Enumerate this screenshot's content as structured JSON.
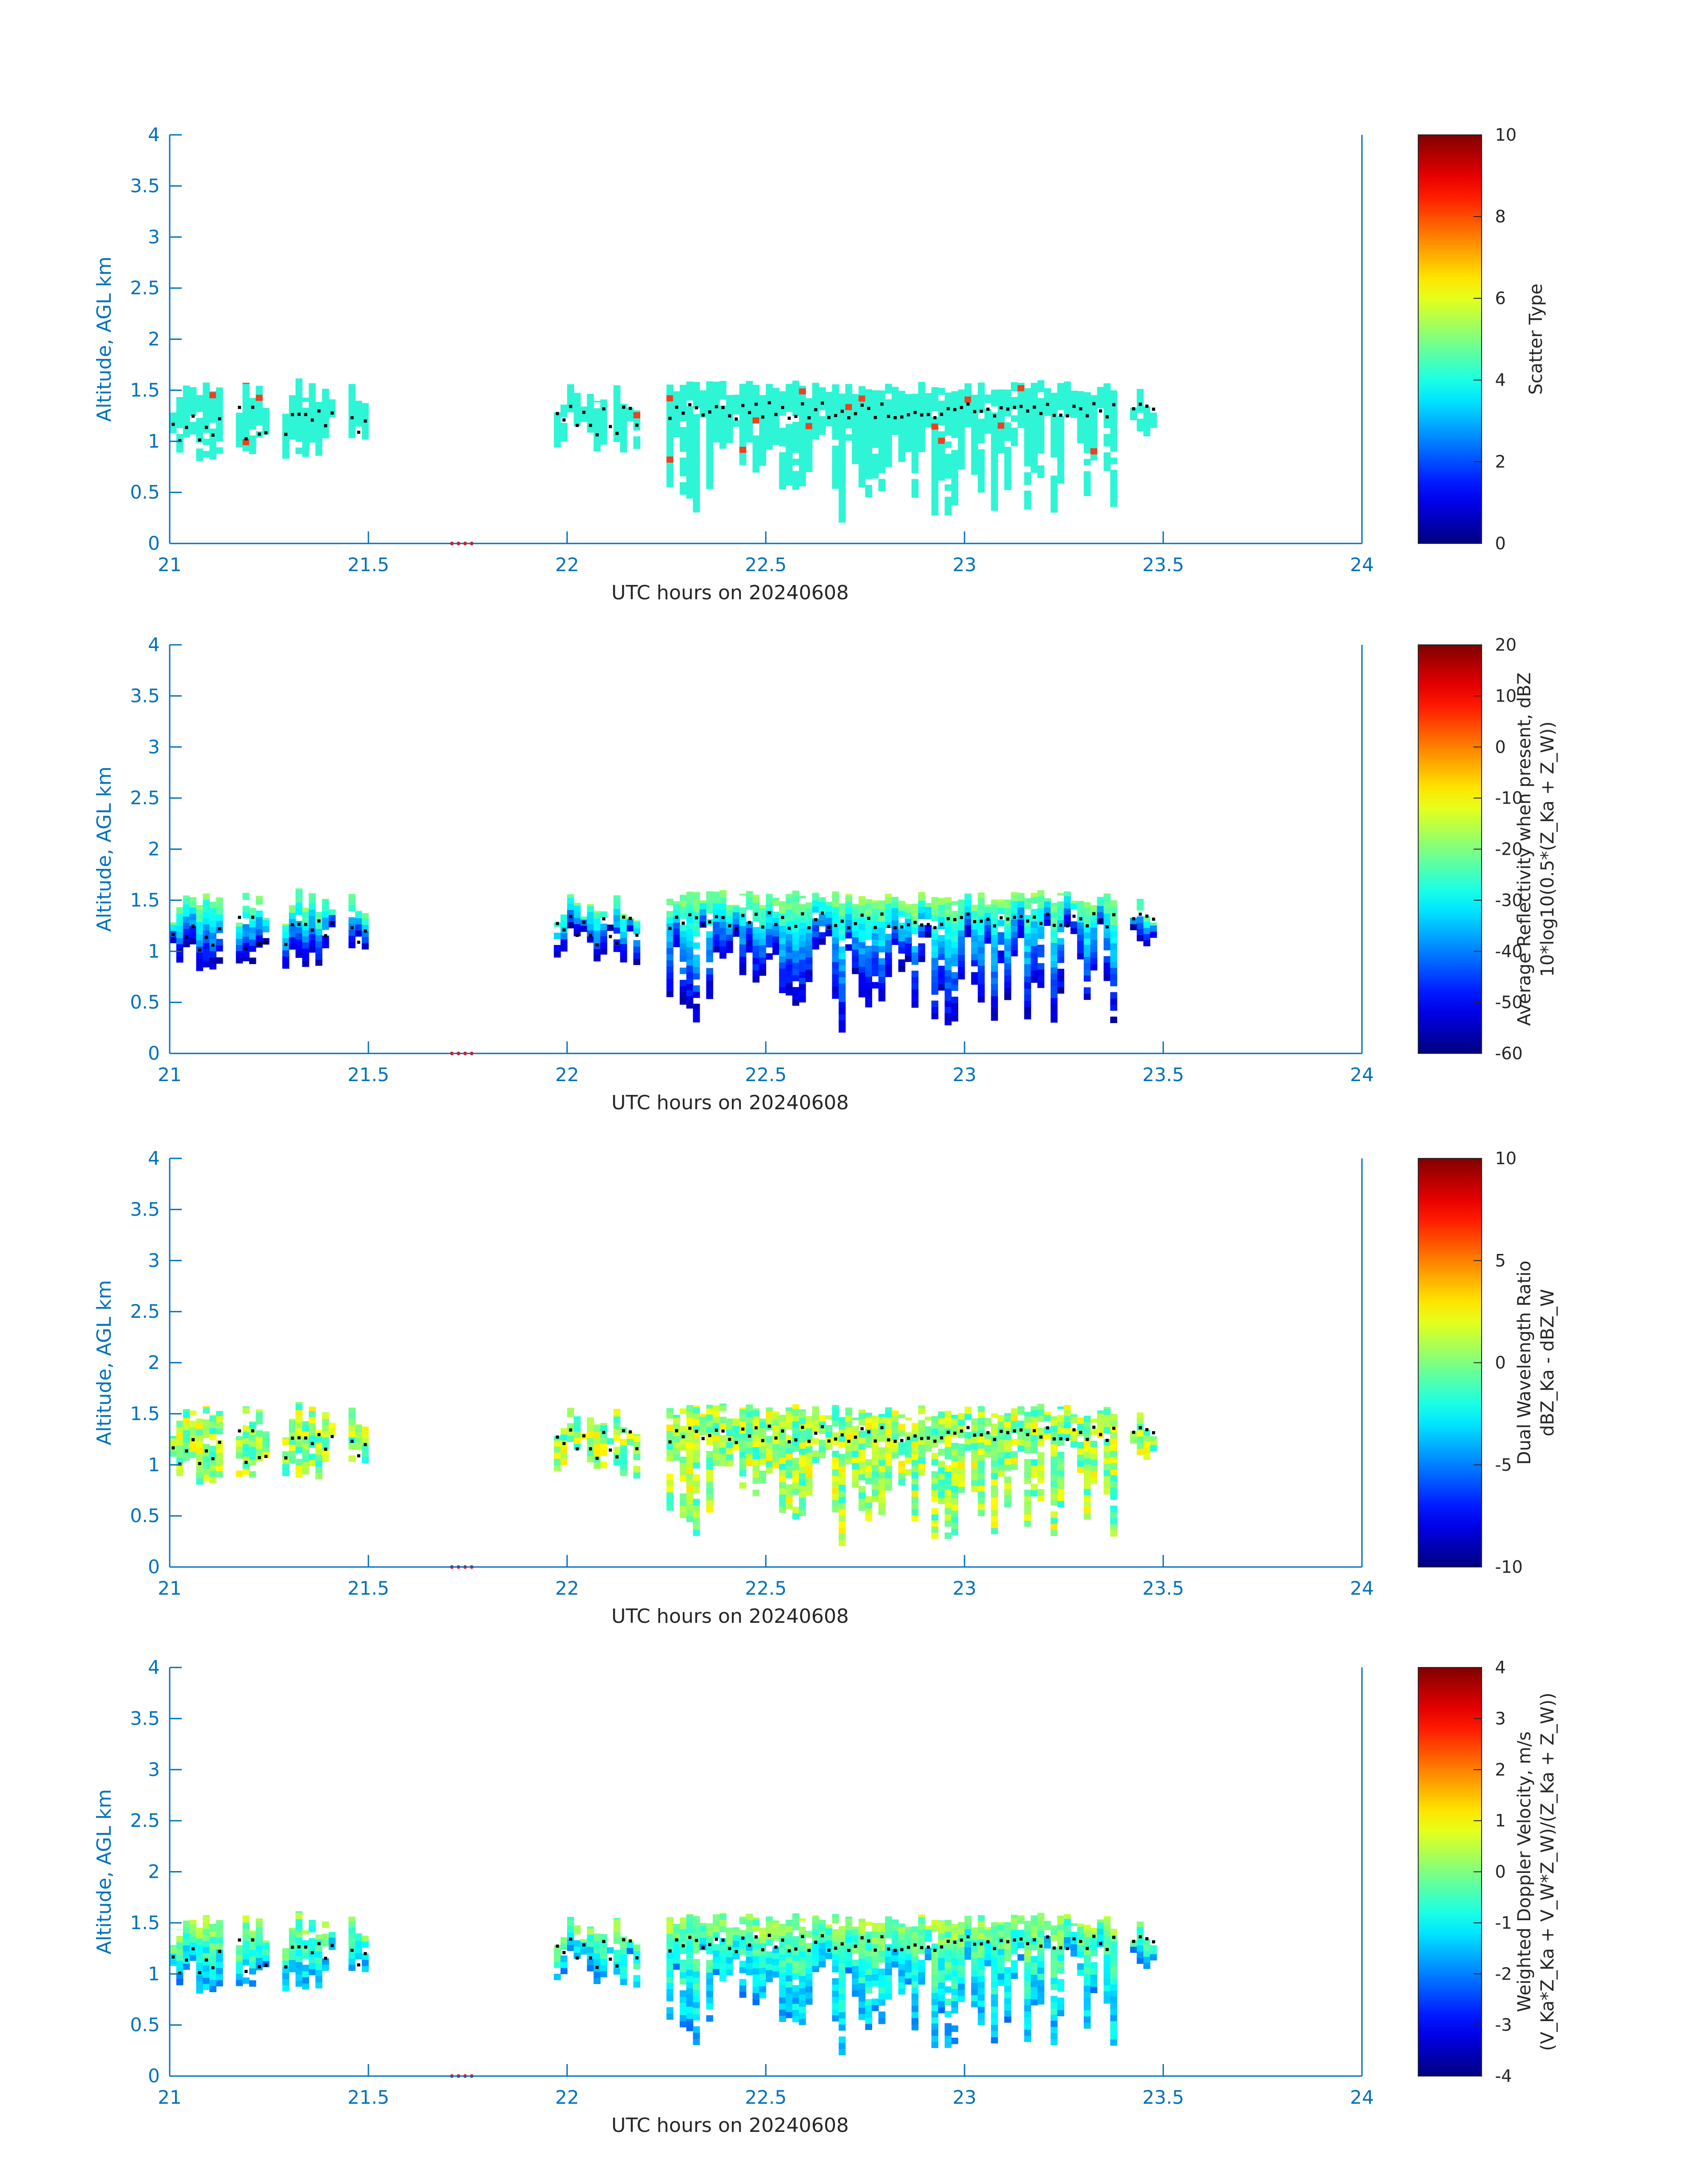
{
  "colors": {
    "axis": "#0072BD",
    "scatter_fill": "#2ef5d6",
    "scatter_alt": "#f0401e",
    "marker": "#000000",
    "gap_marker": "#ff0000"
  },
  "chart_data": [
    {
      "type": "heatmap",
      "title": "",
      "xlabel": "UTC hours on 20240608",
      "ylabel": "Altitude, AGL km",
      "xlim": [
        21,
        24
      ],
      "ylim": [
        0,
        4
      ],
      "x_ticks": [
        "21",
        "21.5",
        "22",
        "22.5",
        "23",
        "23.5",
        "24"
      ],
      "y_ticks": [
        "0",
        "0.5",
        "1",
        "1.5",
        "2",
        "2.5",
        "3",
        "3.5",
        "4"
      ],
      "colorbar": {
        "label_lines": [
          "Scatter Type"
        ],
        "ticks": [
          "0",
          "2",
          "4",
          "6",
          "8",
          "10"
        ],
        "range": [
          0,
          10
        ]
      },
      "cloud_base_km": 0.75,
      "cloud_top_km": 1.55,
      "colormode": "scatter"
    },
    {
      "type": "heatmap",
      "title": "",
      "xlabel": "UTC hours on 20240608",
      "ylabel": "Altitude, AGL km",
      "xlim": [
        21,
        24
      ],
      "ylim": [
        0,
        4
      ],
      "x_ticks": [
        "21",
        "21.5",
        "22",
        "22.5",
        "23",
        "23.5",
        "24"
      ],
      "y_ticks": [
        "0",
        "0.5",
        "1",
        "1.5",
        "2",
        "2.5",
        "3",
        "3.5",
        "4"
      ],
      "colorbar": {
        "label_lines": [
          "Average Reflectivity when present, dBZ",
          "10*log10(0.5*(Z_Ka + Z_W))"
        ],
        "ticks": [
          "-60",
          "-50",
          "-40",
          "-30",
          "-20",
          "-10",
          "0",
          "10",
          "20"
        ],
        "range": [
          -60,
          20
        ]
      },
      "colormode": "reflectivity"
    },
    {
      "type": "heatmap",
      "title": "",
      "xlabel": "UTC hours on 20240608",
      "ylabel": "Altitude, AGL km",
      "xlim": [
        21,
        24
      ],
      "ylim": [
        0,
        4
      ],
      "x_ticks": [
        "21",
        "21.5",
        "22",
        "22.5",
        "23",
        "23.5",
        "24"
      ],
      "y_ticks": [
        "0",
        "0.5",
        "1",
        "1.5",
        "2",
        "2.5",
        "3",
        "3.5",
        "4"
      ],
      "colorbar": {
        "label_lines": [
          "Dual Wavelength Ratio",
          "dBZ_Ka - dBZ_W"
        ],
        "ticks": [
          "-10",
          "-5",
          "0",
          "5",
          "10"
        ],
        "range": [
          -10,
          10
        ]
      },
      "colormode": "dwr"
    },
    {
      "type": "heatmap",
      "title": "",
      "xlabel": "UTC hours on 20240608",
      "ylabel": "Altitude, AGL km",
      "xlim": [
        21,
        24
      ],
      "ylim": [
        0,
        4
      ],
      "x_ticks": [
        "21",
        "21.5",
        "22",
        "22.5",
        "23",
        "23.5",
        "24"
      ],
      "y_ticks": [
        "0",
        "0.5",
        "1",
        "1.5",
        "2",
        "2.5",
        "3",
        "3.5",
        "4"
      ],
      "colorbar": {
        "label_lines": [
          "Weighted Doppler Velocity, m/s",
          "(V_Ka*Z_Ka + V_W*Z_W)/(Z_Ka + Z_W))"
        ],
        "ticks": [
          "-4",
          "-3",
          "-2",
          "-1",
          "0",
          "1",
          "2",
          "3",
          "4"
        ],
        "range": [
          -4,
          4
        ]
      },
      "colormode": "velocity"
    }
  ],
  "echo_segments_hours": [
    [
      21.0,
      21.13
    ],
    [
      21.16,
      21.25
    ],
    [
      21.28,
      21.41
    ],
    [
      21.45,
      21.5
    ],
    [
      21.97,
      22.19
    ],
    [
      22.25,
      23.39
    ],
    [
      23.42,
      23.49
    ]
  ],
  "cloud_base_markers_hours": [
    21.0,
    21.5
  ],
  "gap_markers_hours": [
    21.71,
    21.76
  ]
}
